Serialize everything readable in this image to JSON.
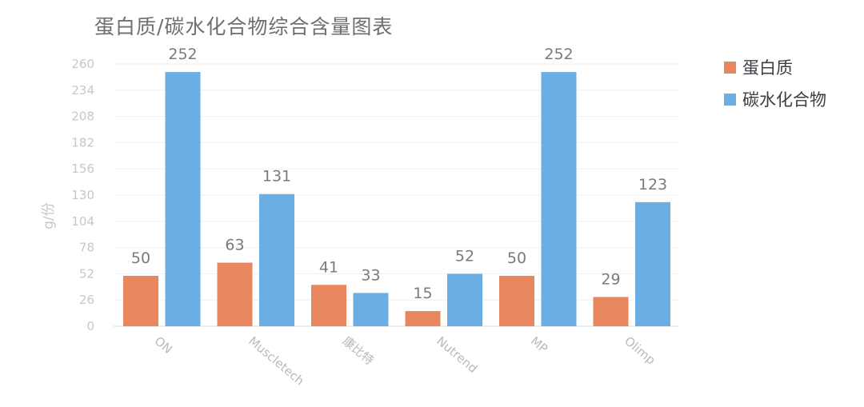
{
  "chart_data": {
    "type": "bar",
    "title": "蛋白质/碳水化合物综合含量图表",
    "ylabel": "g/份",
    "xlabel": "",
    "categories": [
      "ON",
      "Muscletech",
      "康比特",
      "Nutrend",
      "MP",
      "Olimp"
    ],
    "series": [
      {
        "name": "蛋白质",
        "color": "#e8875e",
        "values": [
          50,
          63,
          41,
          15,
          50,
          29
        ]
      },
      {
        "name": "碳水化合物",
        "color": "#6aaee3",
        "values": [
          252,
          131,
          33,
          52,
          252,
          123
        ]
      }
    ],
    "ylim": [
      0,
      260
    ],
    "yticks": [
      0,
      26,
      52,
      78,
      104,
      130,
      156,
      182,
      208,
      234,
      260
    ],
    "grid": true,
    "legend_position": "right",
    "data_labels": true
  }
}
